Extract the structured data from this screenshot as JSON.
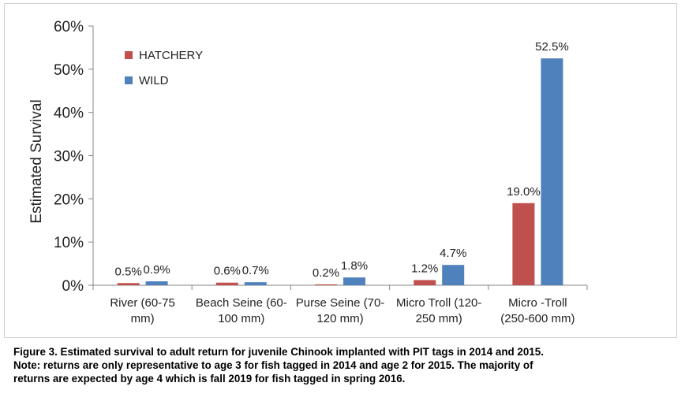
{
  "chart_data": {
    "type": "bar",
    "title": "",
    "xlabel": "",
    "ylabel": "Estimated Survival",
    "ylim": [
      0,
      60
    ],
    "yticks": [
      "0%",
      "10%",
      "20%",
      "30%",
      "40%",
      "50%",
      "60%"
    ],
    "categories": [
      [
        "River (60-75",
        "mm)"
      ],
      [
        "Beach Seine (60-",
        "100 mm)"
      ],
      [
        "Purse Seine (70-",
        "120 mm)"
      ],
      [
        "Micro Troll (120-",
        "250 mm)"
      ],
      [
        "Micro -Troll",
        "(250-600 mm)"
      ]
    ],
    "series": [
      {
        "name": "HATCHERY",
        "color": "#c0504d",
        "values": [
          0.5,
          0.6,
          0.2,
          1.2,
          19.0
        ],
        "labels": [
          "0.5%",
          "0.6%",
          "0.2%",
          "1.2%",
          "19.0%"
        ]
      },
      {
        "name": "WILD",
        "color": "#4f81bd",
        "values": [
          0.9,
          0.7,
          1.8,
          4.7,
          52.5
        ],
        "labels": [
          "0.9%",
          "0.7%",
          "1.8%",
          "4.7%",
          "52.5%"
        ]
      }
    ],
    "legend_position": "top-left",
    "grid": false
  },
  "caption": {
    "lines": [
      "Figure 3. Estimated survival to adult return for juvenile Chinook implanted with PIT tags in 2014 and 2015.",
      "Note: returns are only representative to age 3 for fish tagged in 2014 and age 2 for 2015.  The majority of",
      "returns are expected by age 4 which is fall 2019 for fish tagged in spring 2016."
    ]
  }
}
